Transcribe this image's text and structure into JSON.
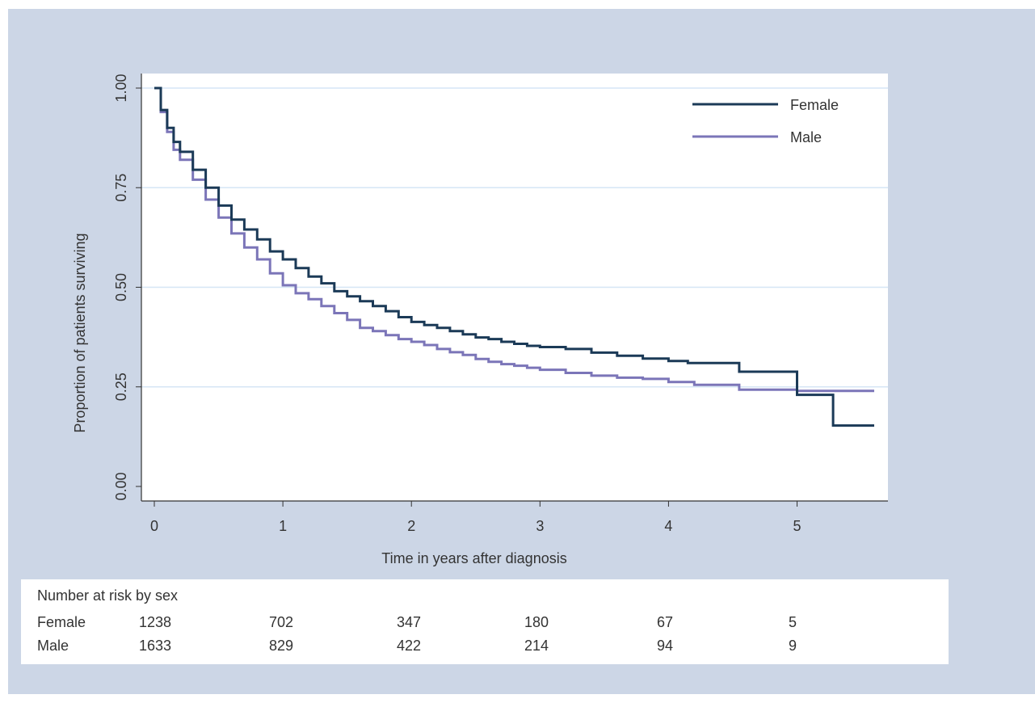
{
  "chart_data": {
    "type": "line",
    "step": true,
    "xlabel": "Time in years after diagnosis",
    "ylabel": "Proportion of patients surviving",
    "xlim": [
      0,
      5.75
    ],
    "ylim": [
      0,
      1
    ],
    "x_ticks": [
      0,
      1,
      2,
      3,
      4,
      5
    ],
    "x_tick_labels": [
      "0",
      "1",
      "2",
      "3",
      "4",
      "5"
    ],
    "y_ticks": [
      0,
      0.25,
      0.5,
      0.75,
      1
    ],
    "y_tick_labels": [
      "0.00",
      "0.25",
      "0.50",
      "0.75",
      "1.00"
    ],
    "grid": "horizontal",
    "legend_position": "top-right",
    "colors": {
      "Female": "#1b3a57",
      "Male": "#7b75b8",
      "background": "#ccd6e6",
      "grid": "#d6e6f5"
    },
    "series": [
      {
        "name": "Female",
        "x": [
          0,
          0.05,
          0.1,
          0.15,
          0.2,
          0.3,
          0.4,
          0.5,
          0.6,
          0.7,
          0.8,
          0.9,
          1.0,
          1.1,
          1.2,
          1.3,
          1.4,
          1.5,
          1.6,
          1.7,
          1.8,
          1.9,
          2.0,
          2.1,
          2.2,
          2.3,
          2.4,
          2.5,
          2.6,
          2.7,
          2.8,
          2.9,
          3.0,
          3.2,
          3.4,
          3.6,
          3.8,
          4.0,
          4.15,
          4.55,
          5.0,
          5.28,
          5.6
        ],
        "y": [
          1.0,
          0.945,
          0.9,
          0.865,
          0.84,
          0.795,
          0.75,
          0.705,
          0.67,
          0.645,
          0.62,
          0.59,
          0.57,
          0.548,
          0.527,
          0.51,
          0.49,
          0.477,
          0.465,
          0.453,
          0.44,
          0.425,
          0.413,
          0.405,
          0.398,
          0.39,
          0.382,
          0.374,
          0.37,
          0.363,
          0.358,
          0.353,
          0.35,
          0.345,
          0.336,
          0.328,
          0.321,
          0.315,
          0.31,
          0.288,
          0.23,
          0.153,
          0.153
        ]
      },
      {
        "name": "Male",
        "x": [
          0,
          0.05,
          0.1,
          0.15,
          0.2,
          0.3,
          0.4,
          0.5,
          0.6,
          0.7,
          0.8,
          0.9,
          1.0,
          1.1,
          1.2,
          1.3,
          1.4,
          1.5,
          1.6,
          1.7,
          1.8,
          1.9,
          2.0,
          2.1,
          2.2,
          2.3,
          2.4,
          2.5,
          2.6,
          2.7,
          2.8,
          2.9,
          3.0,
          3.2,
          3.4,
          3.6,
          3.8,
          4.0,
          4.2,
          4.55,
          5.0,
          5.6
        ],
        "y": [
          1.0,
          0.94,
          0.89,
          0.845,
          0.82,
          0.77,
          0.72,
          0.675,
          0.635,
          0.6,
          0.57,
          0.535,
          0.505,
          0.485,
          0.47,
          0.453,
          0.435,
          0.418,
          0.398,
          0.39,
          0.38,
          0.37,
          0.363,
          0.355,
          0.345,
          0.337,
          0.33,
          0.32,
          0.313,
          0.307,
          0.303,
          0.298,
          0.293,
          0.285,
          0.278,
          0.273,
          0.27,
          0.262,
          0.255,
          0.243,
          0.24,
          0.24
        ]
      }
    ]
  },
  "risk_table": {
    "title": "Number at risk by sex",
    "rows": [
      {
        "label": "Female",
        "values": [
          "1238",
          "702",
          "347",
          "180",
          "67",
          "5"
        ]
      },
      {
        "label": "Male",
        "values": [
          "1633",
          "829",
          "422",
          "214",
          "94",
          "9"
        ]
      }
    ]
  }
}
